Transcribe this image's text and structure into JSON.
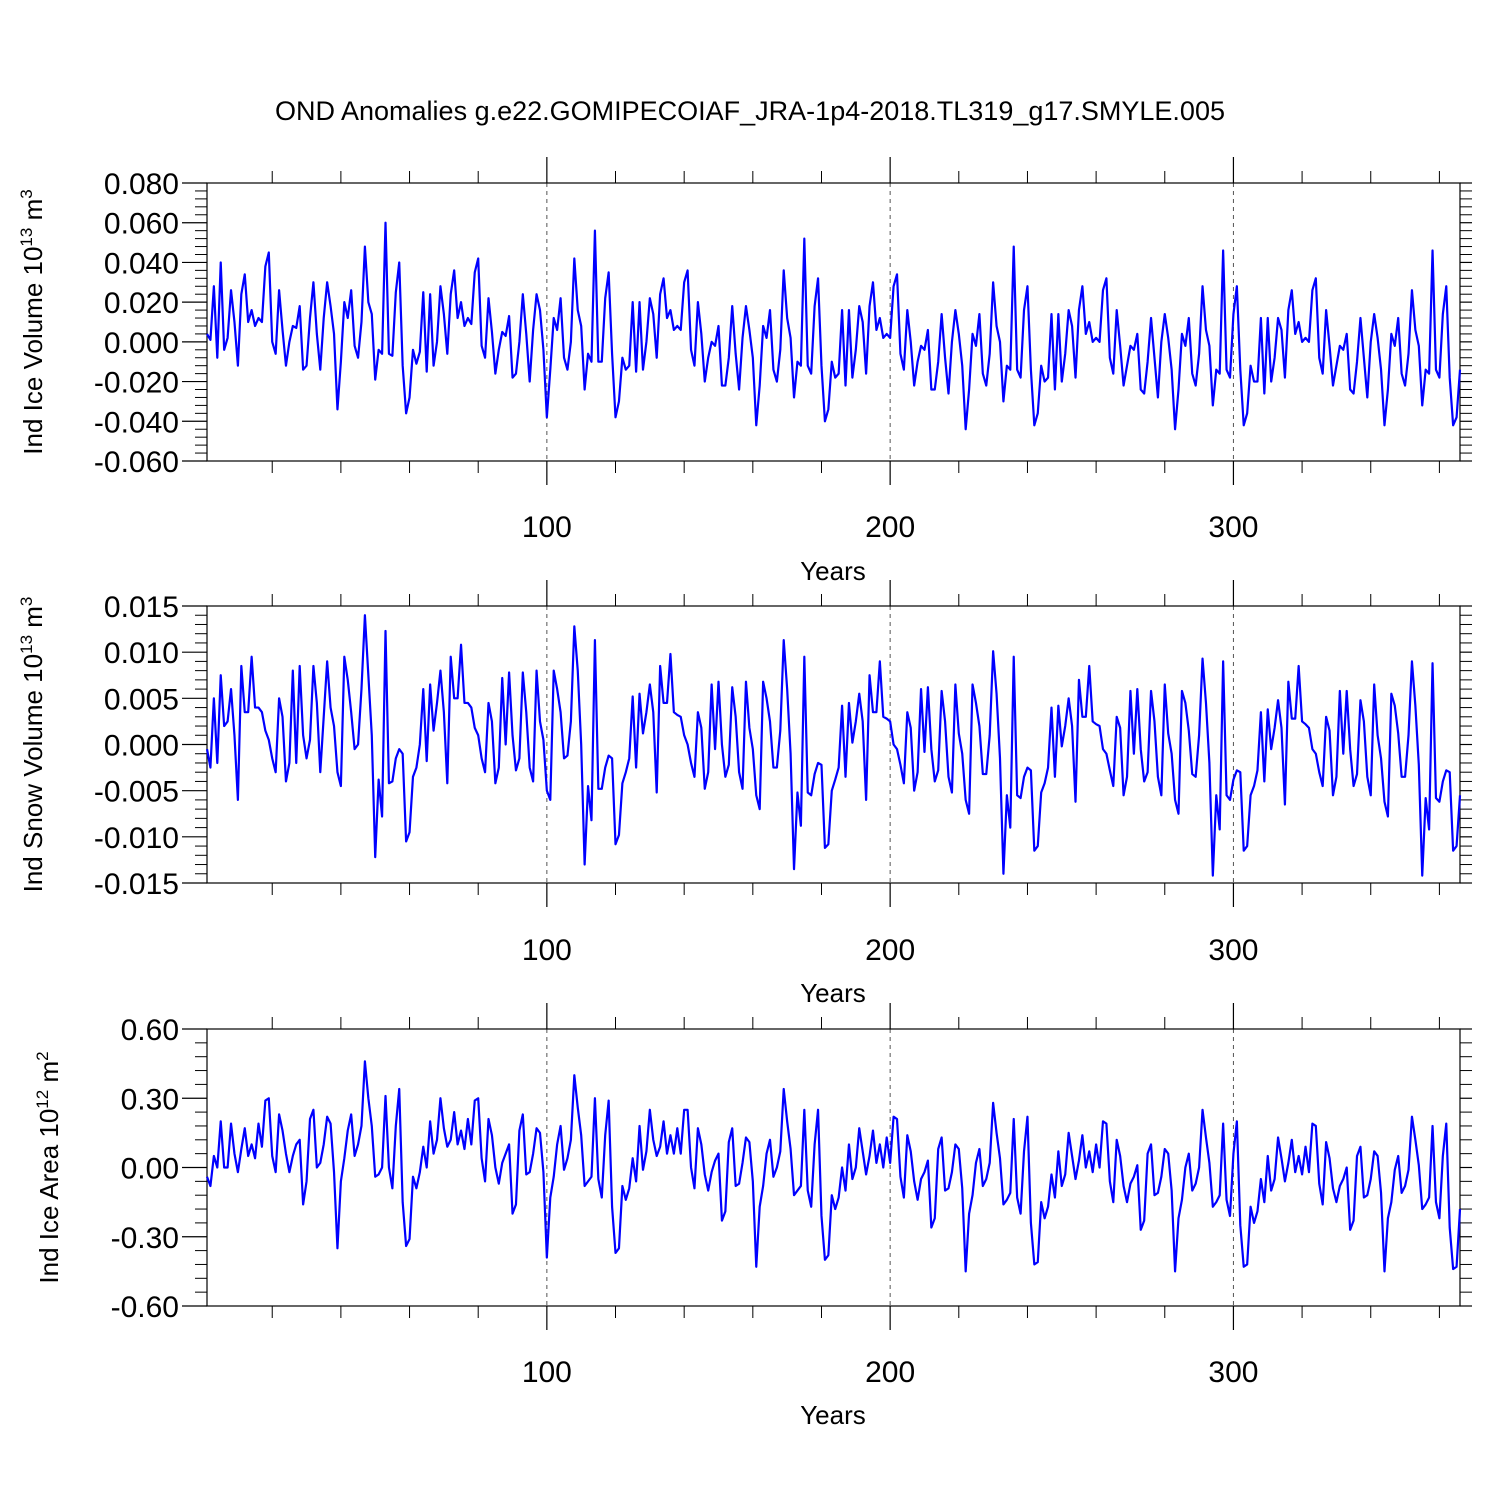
{
  "title": "OND Anomalies g.e22.GOMIPECOIAF_JRA-1p4-2018.TL319_g17.SMYLE.005",
  "colors": {
    "line": "#0000ff",
    "axis": "#000000",
    "grid": "#555555"
  },
  "chart_data": [
    {
      "type": "line",
      "name": "ice-volume",
      "ylabel_main": "Ind Ice Volume 10",
      "ylabel_exp": "13",
      "ylabel_unit": " m",
      "ylabel_unit_exp": "3",
      "xlabel": "Years",
      "xlim": [
        1,
        366
      ],
      "ylim": [
        -0.06,
        0.08
      ],
      "yticks": [
        -0.06,
        -0.04,
        -0.02,
        0.0,
        0.02,
        0.04,
        0.06,
        0.08
      ],
      "ytick_labels": [
        "-0.060",
        "-0.040",
        "-0.020",
        "0.000",
        "0.020",
        "0.040",
        "0.060",
        "0.080"
      ],
      "xticks": [
        100,
        200,
        300
      ],
      "xtick_labels": [
        "100",
        "200",
        "300"
      ],
      "series": [
        {
          "name": "Ind Ice Volume",
          "color": "#0000ff",
          "values": []
        }
      ]
    },
    {
      "type": "line",
      "name": "snow-volume",
      "ylabel_main": "Ind Snow Volume 10",
      "ylabel_exp": "13",
      "ylabel_unit": " m",
      "ylabel_unit_exp": "3",
      "xlabel": "Years",
      "xlim": [
        1,
        366
      ],
      "ylim": [
        -0.015,
        0.015
      ],
      "yticks": [
        -0.015,
        -0.01,
        -0.005,
        0.0,
        0.005,
        0.01,
        0.015
      ],
      "ytick_labels": [
        "-0.015",
        "-0.010",
        "-0.005",
        "0.000",
        "0.005",
        "0.010",
        "0.015"
      ],
      "xticks": [
        100,
        200,
        300
      ],
      "xtick_labels": [
        "100",
        "200",
        "300"
      ],
      "series": [
        {
          "name": "Ind Snow Volume",
          "color": "#0000ff",
          "values": []
        }
      ]
    },
    {
      "type": "line",
      "name": "ice-area",
      "ylabel_main": "Ind Ice Area 10",
      "ylabel_exp": "12",
      "ylabel_unit": " m",
      "ylabel_unit_exp": "2",
      "xlabel": "Years",
      "xlim": [
        1,
        366
      ],
      "ylim": [
        -0.6,
        0.6
      ],
      "yticks": [
        -0.6,
        -0.3,
        0.0,
        0.3,
        0.6
      ],
      "ytick_labels": [
        "-0.60",
        "-0.30",
        "0.00",
        "0.30",
        "0.60"
      ],
      "xticks": [
        100,
        200,
        300
      ],
      "xtick_labels": [
        "100",
        "200",
        "300"
      ],
      "series": [
        {
          "name": "Ind Ice Area",
          "color": "#0000ff",
          "values": []
        }
      ]
    }
  ]
}
